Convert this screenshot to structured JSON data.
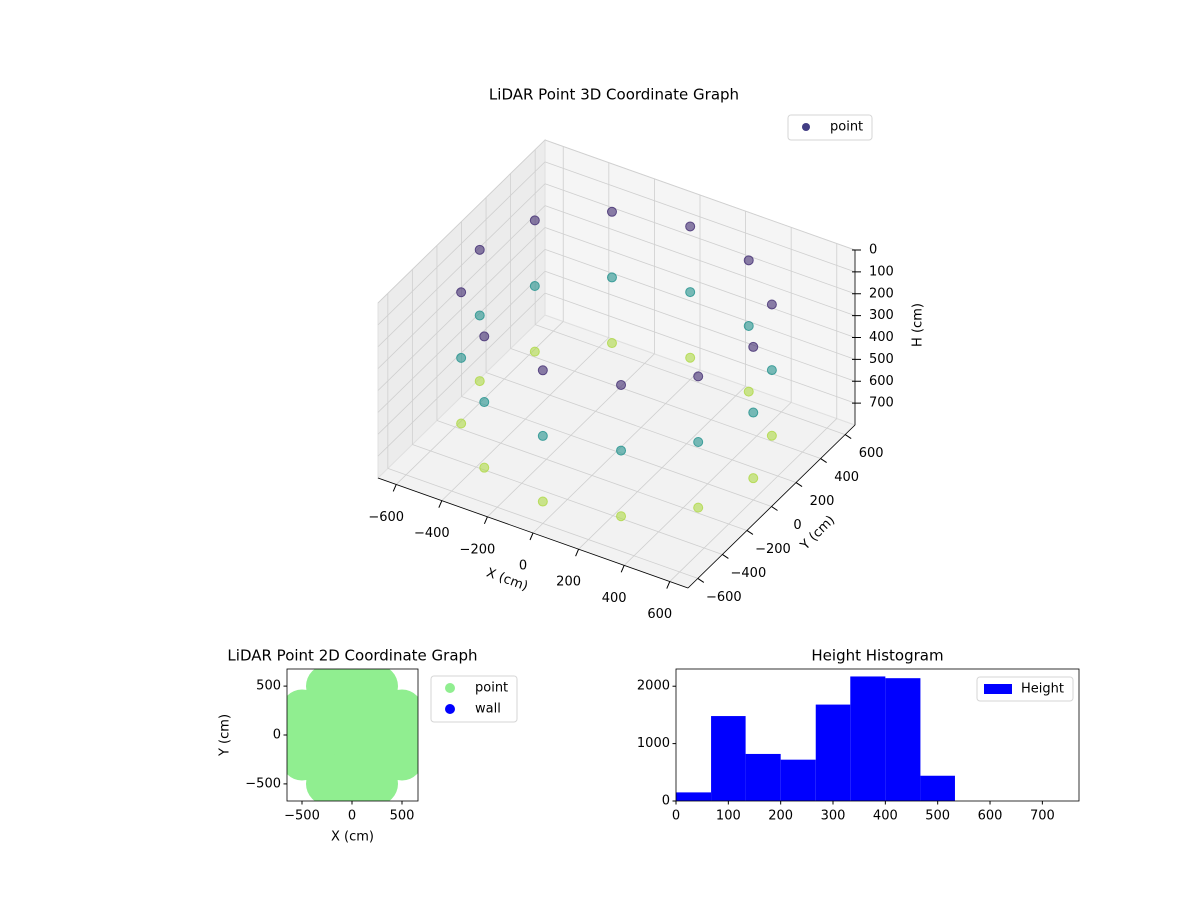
{
  "chart_data": [
    {
      "type": "scatter3d",
      "title": "LiDAR Point 3D Coordinate Graph",
      "xlabel": "X (cm)",
      "ylabel": "Y (cm)",
      "zlabel": "H (cm)",
      "xlim": [
        -680,
        680
      ],
      "ylim": [
        -680,
        680
      ],
      "zlim": [
        800,
        0
      ],
      "xticks": [
        {
          "value": -600,
          "label": "−600"
        },
        {
          "value": -400,
          "label": "−400"
        },
        {
          "value": -200,
          "label": "−200"
        },
        0,
        200,
        400,
        600
      ],
      "yticks": [
        {
          "value": -600,
          "label": "−600"
        },
        {
          "value": -400,
          "label": "−400"
        },
        {
          "value": -200,
          "label": "−200"
        },
        0,
        200,
        400,
        600
      ],
      "zticks": [
        0,
        100,
        200,
        300,
        400,
        500,
        600,
        700
      ],
      "colormap": "viridis",
      "legend": "upper right",
      "grid": true,
      "series": [
        {
          "name": "point",
          "color": "#423d84",
          "x": [
            600,
            520,
            300,
            0,
            -300,
            -520,
            -600,
            -520,
            -300,
            0,
            300,
            520,
            600,
            520,
            300,
            0,
            -300,
            -520,
            -600,
            -520,
            -300,
            0,
            300,
            520,
            600,
            520,
            300,
            0,
            -300,
            -520,
            -600,
            -520,
            -300,
            0,
            300,
            520
          ],
          "y": [
            0,
            300,
            520,
            600,
            520,
            300,
            0,
            -300,
            -520,
            -600,
            -520,
            -300,
            0,
            300,
            520,
            600,
            520,
            300,
            0,
            -300,
            -520,
            -600,
            -520,
            -300,
            0,
            300,
            520,
            600,
            520,
            300,
            0,
            -300,
            -520,
            -600,
            -520,
            -300
          ],
          "z": [
            100,
            100,
            100,
            100,
            100,
            100,
            100,
            100,
            100,
            100,
            100,
            100,
            400,
            400,
            400,
            400,
            400,
            400,
            400,
            400,
            400,
            400,
            400,
            400,
            700,
            700,
            700,
            700,
            700,
            700,
            700,
            700,
            700,
            700,
            700,
            700
          ]
        }
      ]
    },
    {
      "type": "scatter",
      "title": "LiDAR Point 2D Coordinate Graph",
      "xlabel": "X (cm)",
      "ylabel": "Y (cm)",
      "xlim": [
        -650,
        660
      ],
      "ylim": [
        -675,
        675
      ],
      "xticks": [
        {
          "value": -500,
          "label": "−500"
        },
        0,
        500
      ],
      "yticks": [
        {
          "value": -500,
          "label": "−500"
        },
        0,
        500
      ],
      "legend": "outside right",
      "series": [
        {
          "name": "point",
          "color": "#90ee90",
          "x": [
            -250,
            0,
            250,
            -500,
            -250,
            0,
            250,
            500,
            -500,
            -250,
            0,
            250,
            500,
            -500,
            -250,
            0,
            250,
            500,
            -250,
            0,
            250
          ],
          "y": [
            -500,
            -500,
            -500,
            -250,
            -250,
            -250,
            -250,
            -250,
            0,
            0,
            0,
            0,
            0,
            250,
            250,
            250,
            250,
            250,
            500,
            500,
            500
          ]
        },
        {
          "name": "wall",
          "color": "#0000ff",
          "x": [],
          "y": []
        }
      ]
    },
    {
      "type": "histogram",
      "title": "Height Histogram",
      "name": "Height",
      "color": "#0000ff",
      "bins": [
        0,
        67,
        133,
        200,
        267,
        333,
        400,
        467,
        533,
        600,
        667,
        733
      ],
      "counts": [
        150,
        1480,
        820,
        720,
        1680,
        2170,
        2140,
        440,
        0,
        0,
        0
      ],
      "xlim": [
        0,
        770
      ],
      "ylim": [
        0,
        2300
      ],
      "xticks": [
        0,
        100,
        200,
        300,
        400,
        500,
        600,
        700
      ],
      "yticks": [
        0,
        1000,
        2000
      ],
      "legend": "upper right"
    }
  ]
}
